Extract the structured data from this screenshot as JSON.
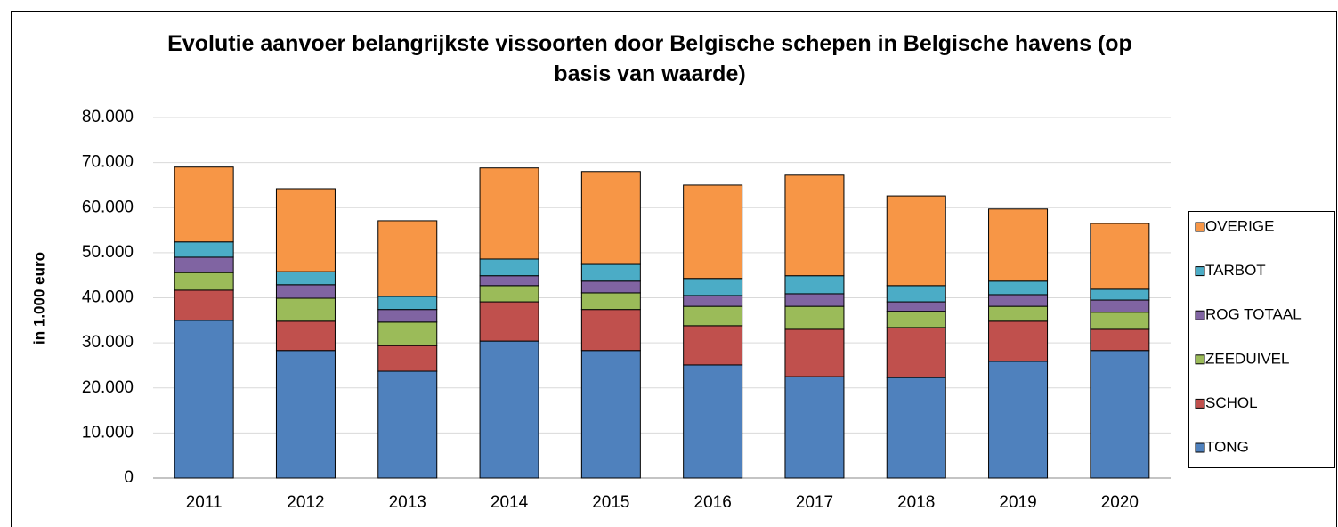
{
  "chart_data": {
    "type": "stacked_bar",
    "title": "Evolutie aanvoer belangrijkste vissoorten door Belgische schepen in Belgische havens (op basis van waarde)",
    "ylabel": "in 1.000 euro",
    "categories": [
      "2011",
      "2012",
      "2013",
      "2014",
      "2015",
      "2016",
      "2017",
      "2018",
      "2019",
      "2020"
    ],
    "series": [
      {
        "name": "TONG",
        "color": "#4f81bd",
        "values": [
          35000,
          28300,
          23700,
          30400,
          28300,
          25100,
          22500,
          22300,
          25900,
          28300
        ]
      },
      {
        "name": "SCHOL",
        "color": "#c0504d",
        "values": [
          6700,
          6500,
          5700,
          8700,
          9100,
          8700,
          10500,
          11100,
          8900,
          4700
        ]
      },
      {
        "name": "ZEEDUIVEL",
        "color": "#9bbb59",
        "values": [
          3900,
          5100,
          5200,
          3600,
          3700,
          4300,
          5100,
          3600,
          3300,
          3800
        ]
      },
      {
        "name": "ROG TOTAAL",
        "color": "#8064a2",
        "values": [
          3400,
          3000,
          2800,
          2200,
          2600,
          2400,
          2800,
          2100,
          2600,
          2700
        ]
      },
      {
        "name": "TARBOT",
        "color": "#4bacc6",
        "values": [
          3400,
          2900,
          2900,
          3700,
          3700,
          3800,
          4000,
          3600,
          3000,
          2400
        ]
      },
      {
        "name": "OVERIGE",
        "color": "#f79646",
        "values": [
          16600,
          18400,
          16800,
          20200,
          20600,
          20700,
          22300,
          19900,
          16000,
          14600
        ]
      }
    ],
    "ylim": [
      0,
      80000
    ],
    "yticks": [
      0,
      {
        "value": 10000,
        "label": "10.000"
      },
      {
        "value": 20000,
        "label": "20.000"
      },
      {
        "value": 30000,
        "label": "30.000"
      },
      {
        "value": 40000,
        "label": "40.000"
      },
      {
        "value": 50000,
        "label": "50.000"
      },
      {
        "value": 60000,
        "label": "60.000"
      },
      {
        "value": 70000,
        "label": "70.000"
      },
      {
        "value": 80000,
        "label": "80.000"
      }
    ],
    "grid": true,
    "legend": "right"
  }
}
